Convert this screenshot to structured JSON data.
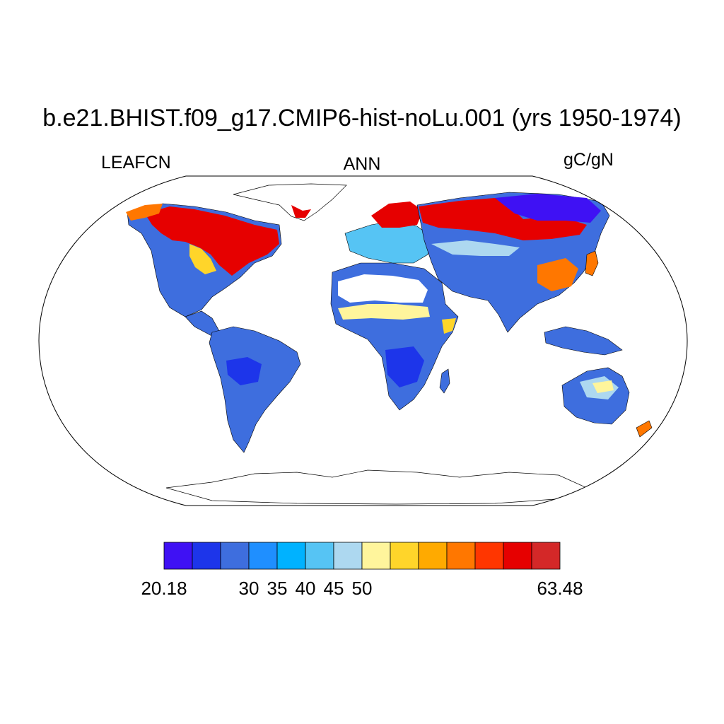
{
  "title": "b.e21.BHIST.f09_g17.CMIP6-hist-noLu.001 (yrs 1950-1974)",
  "left_string": "LEAFCN",
  "center_string": "ANN",
  "right_string": "gC/gN",
  "colorbar": {
    "colors": [
      "#3f11f4",
      "#1d35ea",
      "#3e6ede",
      "#1f8fff",
      "#00b2ff",
      "#56c4f4",
      "#add8f0",
      "#fff59c",
      "#ffd52a",
      "#ffaa00",
      "#ff7700",
      "#ff3600",
      "#e60000",
      "#d42828"
    ],
    "labels": [
      {
        "text": "20.18",
        "boundary": 0
      },
      {
        "text": "30",
        "boundary": 3
      },
      {
        "text": "35",
        "boundary": 4
      },
      {
        "text": "40",
        "boundary": 5
      },
      {
        "text": "45",
        "boundary": 6
      },
      {
        "text": "50",
        "boundary": 7
      },
      {
        "text": "63.48",
        "boundary": 14
      }
    ]
  },
  "legend_colors": {
    "land_base": "#3e6ede",
    "land_boreal": "#e60000",
    "land_dark": "#1d35ea"
  }
}
